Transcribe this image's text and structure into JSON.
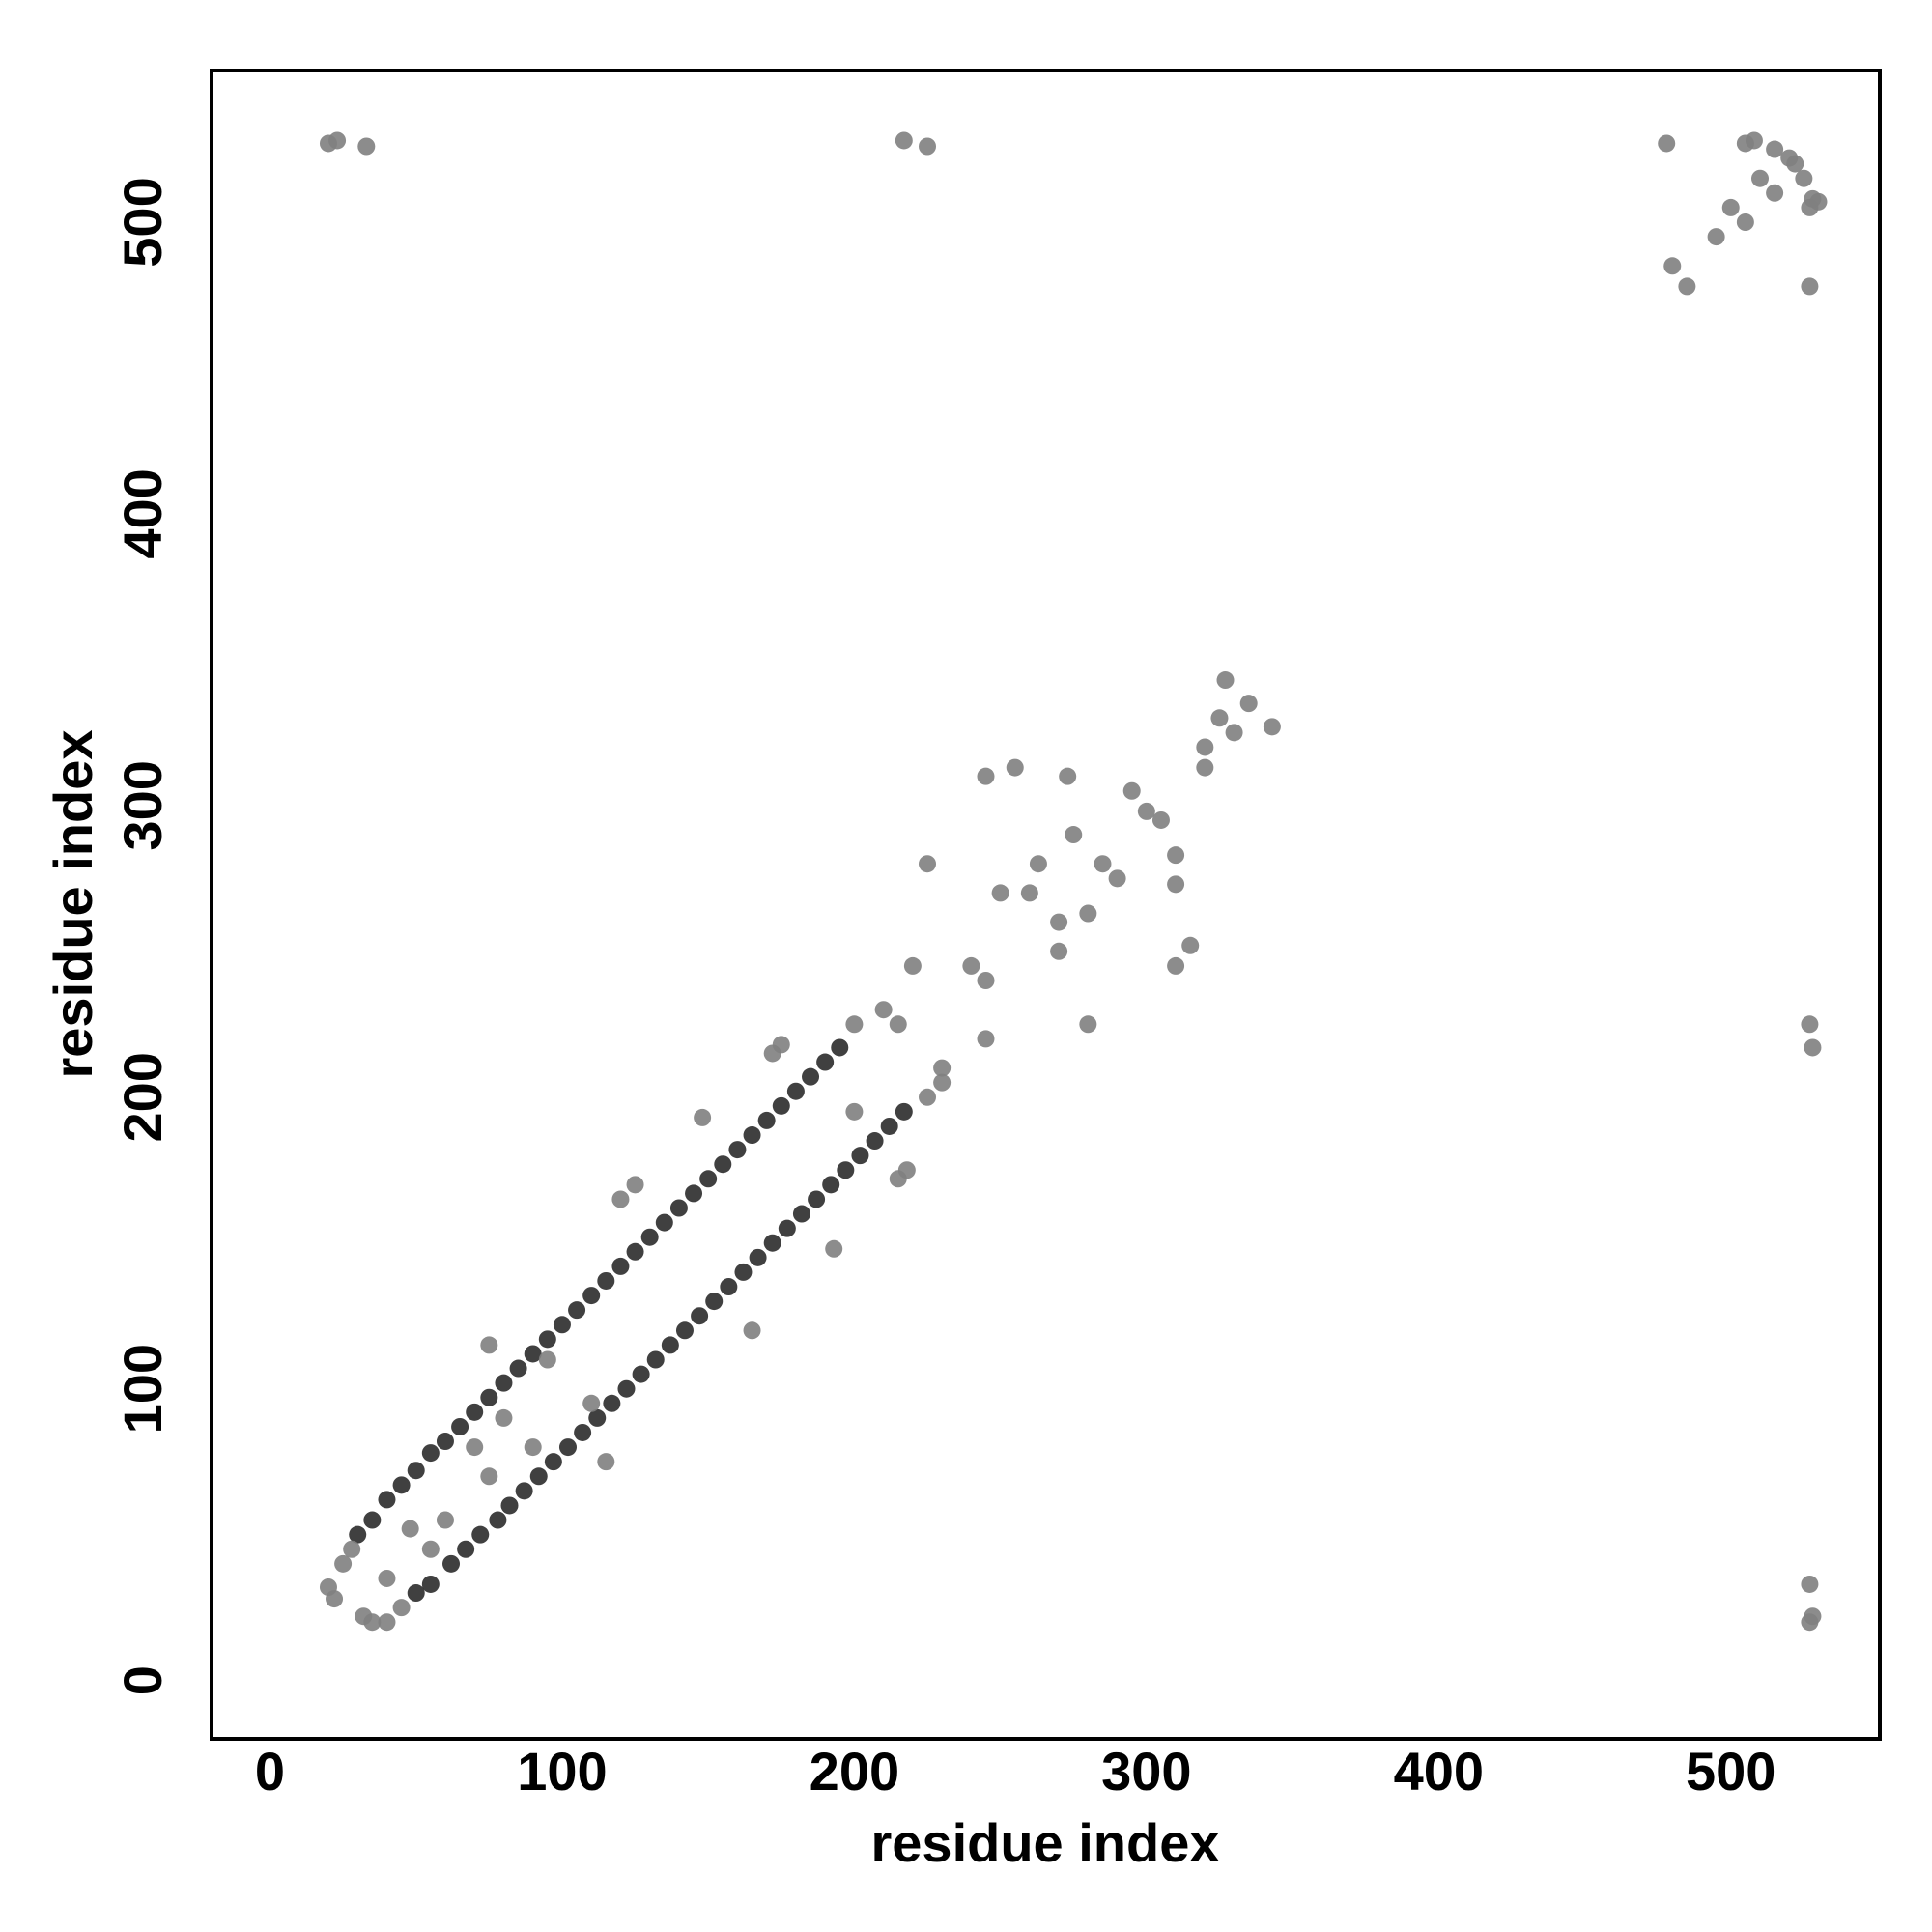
{
  "chart_data": {
    "type": "scatter",
    "x_label": "residue index",
    "y_label": "residue index",
    "xlim": [
      -20,
      551
    ],
    "ylim": [
      -20,
      552
    ],
    "xticks": [
      0,
      100,
      200,
      300,
      400,
      500
    ],
    "yticks": [
      0,
      100,
      200,
      300,
      400,
      500
    ],
    "series": [
      {
        "color": "#2b2b2b",
        "x": [
          30,
          35,
          40,
          45,
          50,
          55,
          60,
          65,
          70,
          75,
          80,
          85,
          90,
          95,
          100,
          105,
          110,
          115,
          120,
          125,
          130,
          135,
          140,
          145,
          150,
          155,
          160,
          165,
          170,
          175,
          180,
          185,
          190,
          195,
          50,
          55,
          62,
          67,
          72,
          78,
          82,
          87,
          92,
          97,
          102,
          107,
          112,
          117,
          122,
          127,
          132,
          137,
          142,
          147,
          152,
          157,
          162,
          167,
          172,
          177,
          182,
          187,
          192,
          197,
          202,
          207,
          212,
          217
        ],
        "y": [
          50,
          55,
          62,
          67,
          72,
          78,
          82,
          87,
          92,
          97,
          102,
          107,
          112,
          117,
          122,
          127,
          132,
          137,
          142,
          147,
          152,
          157,
          162,
          167,
          172,
          177,
          182,
          187,
          192,
          197,
          202,
          207,
          212,
          217,
          30,
          33,
          40,
          45,
          50,
          55,
          60,
          65,
          70,
          75,
          80,
          85,
          90,
          95,
          100,
          105,
          110,
          115,
          120,
          125,
          130,
          135,
          140,
          145,
          150,
          155,
          160,
          165,
          170,
          175,
          180,
          185,
          190,
          195
        ]
      },
      {
        "color": "#808080",
        "x": [
          20,
          22,
          25,
          28,
          32,
          35,
          40,
          45,
          40,
          48,
          55,
          60,
          70,
          75,
          80,
          90,
          95,
          110,
          75,
          115,
          120,
          165,
          125,
          148,
          193,
          172,
          215,
          200,
          225,
          210,
          230,
          220,
          245,
          230,
          240,
          245,
          250,
          270,
          245,
          310,
          255,
          260,
          270,
          275,
          290,
          273,
          310,
          280,
          285,
          295,
          305,
          300,
          310,
          315,
          320,
          325,
          330,
          327,
          343,
          335,
          320,
          225,
          280,
          263,
          175,
          218,
          200,
          215,
          20,
          23,
          33,
          217,
          225,
          527,
          528,
          527,
          528,
          527,
          478,
          480,
          485,
          527,
          500,
          505,
          510,
          515,
          520,
          522,
          508,
          528,
          495,
          505,
          527,
          515,
          525,
          530
        ],
        "y": [
          32,
          28,
          40,
          45,
          22,
          20,
          20,
          25,
          35,
          52,
          45,
          55,
          80,
          70,
          90,
          80,
          110,
          95,
          115,
          75,
          165,
          120,
          170,
          193,
          148,
          215,
          172,
          225,
          200,
          230,
          210,
          245,
          220,
          205,
          245,
          240,
          270,
          250,
          310,
          245,
          313,
          270,
          260,
          290,
          275,
          310,
          273,
          225,
          280,
          305,
          295,
          298,
          283,
          252,
          320,
          330,
          325,
          343,
          327,
          335,
          313,
          280,
          263,
          280,
          218,
          175,
          195,
          225,
          527,
          528,
          526,
          528,
          526,
          20,
          22,
          33,
          217,
          225,
          527,
          485,
          478,
          478,
          505,
          500,
          515,
          510,
          522,
          520,
          528,
          508,
          495,
          527,
          505,
          525,
          515,
          507
        ]
      }
    ]
  }
}
